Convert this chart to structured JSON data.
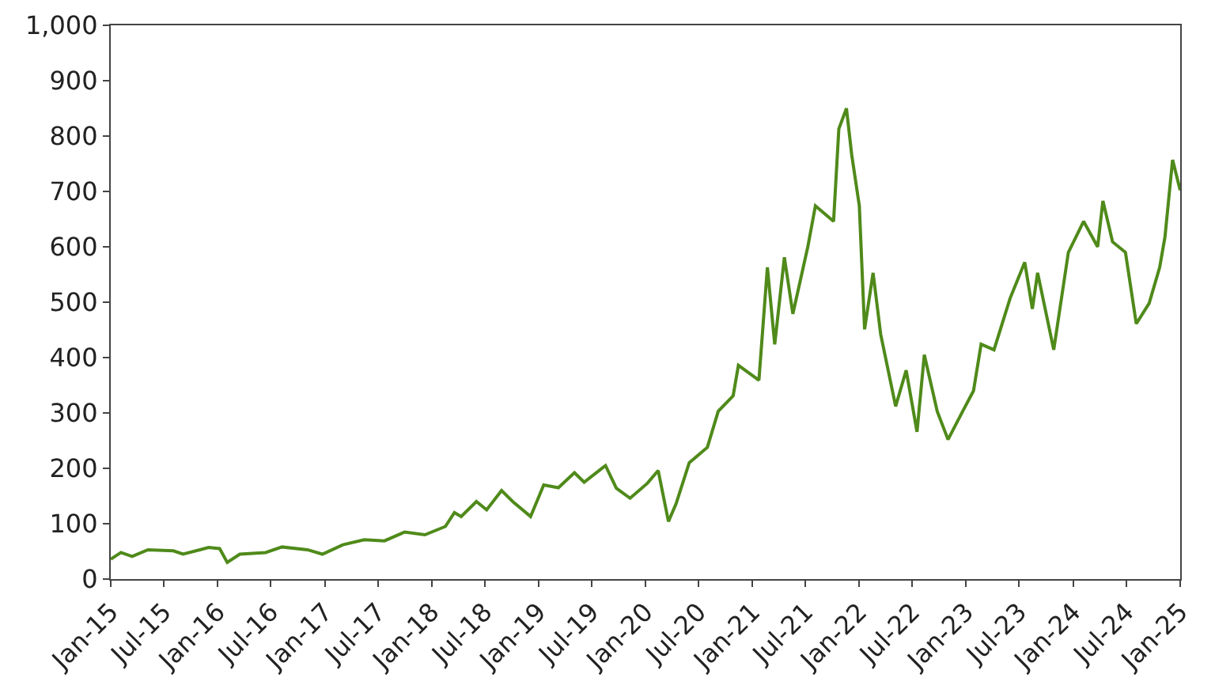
{
  "chart_data": {
    "type": "line",
    "marker": "none",
    "line_style": "solid",
    "x": [
      "2015-01-01",
      "2015-02-05",
      "2015-03-15",
      "2015-05-08",
      "2015-08-03",
      "2015-09-05",
      "2015-12-01",
      "2016-01-08",
      "2016-02-03",
      "2016-03-17",
      "2016-06-13",
      "2016-08-08",
      "2016-11-03",
      "2016-12-24",
      "2017-03-04",
      "2017-05-16",
      "2017-07-24",
      "2017-10-01",
      "2017-12-09",
      "2018-02-17",
      "2018-03-20",
      "2018-04-12",
      "2018-06-03",
      "2018-07-08",
      "2018-08-28",
      "2018-10-05",
      "2018-12-05",
      "2019-01-19",
      "2019-03-10",
      "2019-05-04",
      "2019-06-06",
      "2019-08-18",
      "2019-09-24",
      "2019-11-10",
      "2020-01-08",
      "2020-02-14",
      "2020-03-20",
      "2020-04-15",
      "2020-05-30",
      "2020-07-31",
      "2020-09-06",
      "2020-10-27",
      "2020-11-14",
      "2021-01-23",
      "2021-02-21",
      "2021-03-18",
      "2021-04-20",
      "2021-05-19",
      "2021-07-09",
      "2021-08-04",
      "2021-10-05",
      "2021-10-23",
      "2021-11-18",
      "2021-12-06",
      "2022-01-01",
      "2022-01-19",
      "2022-02-17",
      "2022-03-15",
      "2022-05-05",
      "2022-06-10",
      "2022-07-17",
      "2022-08-11",
      "2022-09-24",
      "2022-10-31",
      "2022-12-20",
      "2023-01-26",
      "2023-02-21",
      "2023-04-06",
      "2023-05-31",
      "2023-07-20",
      "2023-08-15",
      "2023-09-02",
      "2023-10-27",
      "2023-12-16",
      "2024-02-06",
      "2024-03-25",
      "2024-04-12",
      "2024-05-15",
      "2024-06-28",
      "2024-08-04",
      "2024-09-17",
      "2024-10-23",
      "2024-11-10",
      "2024-12-06",
      "2025-01-01"
    ],
    "series": [
      {
        "color": "#4f8a1a",
        "values": [
          36,
          48,
          41,
          53,
          51,
          45,
          57,
          55,
          30,
          45,
          48,
          58,
          53,
          45,
          62,
          71,
          69,
          85,
          80,
          95,
          120,
          113,
          140,
          125,
          160,
          140,
          113,
          170,
          165,
          192,
          175,
          205,
          164,
          146,
          173,
          196,
          104,
          136,
          210,
          238,
          303,
          331,
          386,
          359,
          563,
          424,
          581,
          479,
          600,
          674,
          646,
          813,
          850,
          766,
          674,
          451,
          553,
          442,
          312,
          377,
          266,
          405,
          303,
          252,
          303,
          340,
          424,
          414,
          507,
          572,
          488,
          553,
          414,
          590,
          646,
          600,
          683,
          609,
          590,
          461,
          498,
          563,
          618,
          757,
          702
        ]
      }
    ],
    "xlim": [
      "2015-01-01",
      "2025-01-01"
    ],
    "xticks": [
      {
        "value": "2015-01-01",
        "label": "Jan-15"
      },
      {
        "value": "2015-07-01",
        "label": "Jul-15"
      },
      {
        "value": "2016-01-01",
        "label": "Jan-16"
      },
      {
        "value": "2016-07-01",
        "label": "Jul-16"
      },
      {
        "value": "2017-01-01",
        "label": "Jan-17"
      },
      {
        "value": "2017-07-01",
        "label": "Jul-17"
      },
      {
        "value": "2018-01-01",
        "label": "Jan-18"
      },
      {
        "value": "2018-07-01",
        "label": "Jul-18"
      },
      {
        "value": "2019-01-01",
        "label": "Jan-19"
      },
      {
        "value": "2019-07-01",
        "label": "Jul-19"
      },
      {
        "value": "2020-01-01",
        "label": "Jan-20"
      },
      {
        "value": "2020-07-01",
        "label": "Jul-20"
      },
      {
        "value": "2021-01-01",
        "label": "Jan-21"
      },
      {
        "value": "2021-07-01",
        "label": "Jul-21"
      },
      {
        "value": "2022-01-01",
        "label": "Jan-22"
      },
      {
        "value": "2022-07-01",
        "label": "Jul-22"
      },
      {
        "value": "2023-01-01",
        "label": "Jan-23"
      },
      {
        "value": "2023-07-01",
        "label": "Jul-23"
      },
      {
        "value": "2024-01-01",
        "label": "Jan-24"
      },
      {
        "value": "2024-07-01",
        "label": "Jul-24"
      },
      {
        "value": "2025-01-01",
        "label": "Jan-25"
      }
    ],
    "ylim": [
      0,
      1000
    ],
    "yticks": [
      0,
      100,
      200,
      300,
      400,
      500,
      600,
      700,
      800,
      900,
      {
        "value": 1000,
        "label": "1,000"
      }
    ]
  }
}
